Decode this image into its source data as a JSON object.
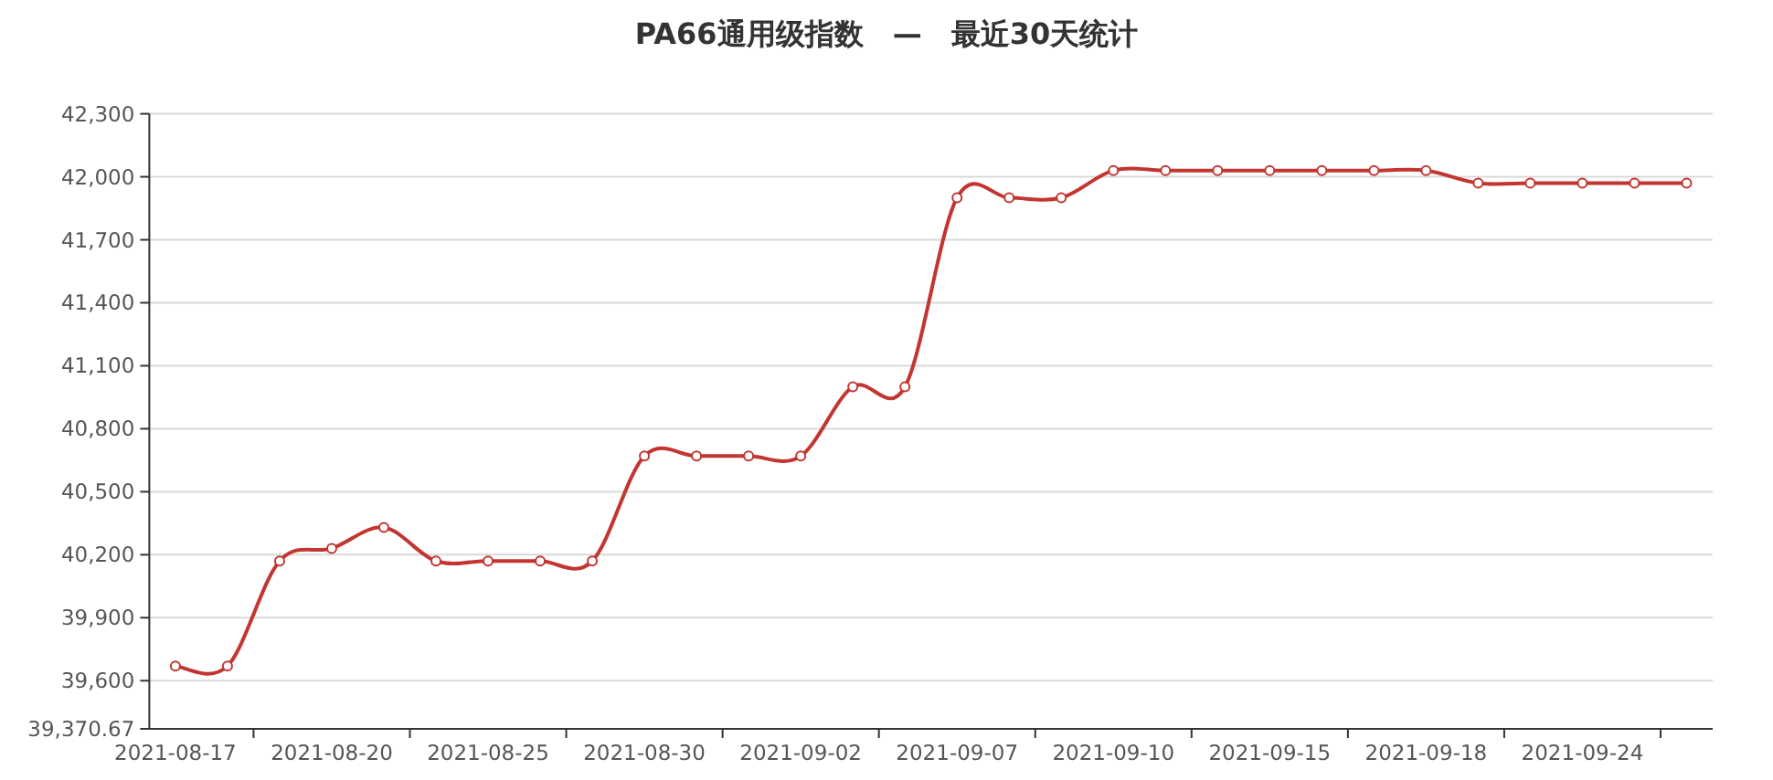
{
  "chart_data": {
    "type": "line",
    "title": "PA66通用级指数　—　最近30天统计",
    "categories": [
      "2021-08-17",
      null,
      null,
      "2021-08-20",
      null,
      null,
      "2021-08-25",
      null,
      null,
      "2021-08-30",
      null,
      null,
      "2021-09-02",
      null,
      null,
      "2021-09-07",
      null,
      null,
      "2021-09-10",
      null,
      null,
      "2021-09-15",
      null,
      null,
      "2021-09-18",
      null,
      null,
      "2021-09-24",
      null,
      null
    ],
    "series": [
      {
        "color": "#c23531",
        "values": [
          39670,
          39670,
          40170,
          40230,
          40330,
          40170,
          40170,
          40170,
          40170,
          40670,
          40670,
          40670,
          40670,
          41000,
          41000,
          41900,
          41900,
          41900,
          42030,
          42030,
          42030,
          42030,
          42030,
          42030,
          42030,
          41970,
          41970,
          41970,
          41970,
          41970
        ]
      }
    ],
    "ylim": [
      39370.67,
      42300
    ],
    "yticks": [
      {
        "value": 39370.67,
        "label": "39,370.67"
      },
      {
        "value": 39600,
        "label": "39,600"
      },
      {
        "value": 39900,
        "label": "39,900"
      },
      {
        "value": 40200,
        "label": "40,200"
      },
      {
        "value": 40500,
        "label": "40,500"
      },
      {
        "value": 40800,
        "label": "40,800"
      },
      {
        "value": 41100,
        "label": "41,100"
      },
      {
        "value": 41400,
        "label": "41,400"
      },
      {
        "value": 41700,
        "label": "41,700"
      },
      {
        "value": 42000,
        "label": "42,000"
      },
      {
        "value": 42300,
        "label": "42,300"
      }
    ],
    "grid": "y",
    "marker": "circle",
    "line_style": "solid"
  }
}
